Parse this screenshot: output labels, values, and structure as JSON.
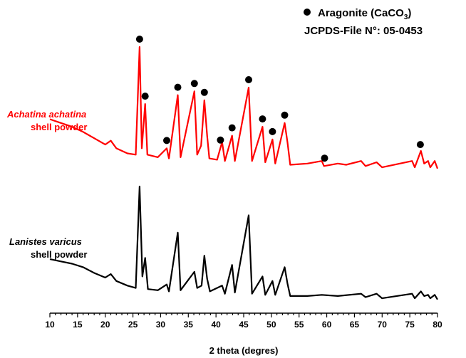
{
  "chart_data": {
    "type": "line",
    "xlabel": "2 theta (degres)",
    "ylabel": "",
    "xlim": [
      10,
      80
    ],
    "x_ticks": [
      10,
      15,
      20,
      25,
      30,
      35,
      40,
      45,
      50,
      55,
      60,
      65,
      70,
      75,
      80
    ],
    "y_axis_shown": false,
    "grid": false,
    "legend": {
      "position": "top-right",
      "marker": "filled-circle",
      "name_prefix": "Aragonite (CaCO",
      "name_subscript": "3",
      "name_suffix": ")",
      "file_line": "JCPDS-File N°:  05-0453"
    },
    "series": [
      {
        "name_italic": "Achatina achatina",
        "name_sub": "shell powder",
        "color": "#ff0000",
        "points": [
          [
            10,
            0.43
          ],
          [
            12,
            0.4
          ],
          [
            14,
            0.37
          ],
          [
            16,
            0.33
          ],
          [
            18,
            0.28
          ],
          [
            20,
            0.23
          ],
          [
            21,
            0.26
          ],
          [
            22,
            0.2
          ],
          [
            24,
            0.16
          ],
          [
            25.5,
            0.15
          ],
          [
            26.2,
            1.0
          ],
          [
            26.6,
            0.2
          ],
          [
            27.2,
            0.55
          ],
          [
            27.6,
            0.15
          ],
          [
            29.5,
            0.13
          ],
          [
            31.1,
            0.2
          ],
          [
            31.5,
            0.12
          ],
          [
            33.1,
            0.62
          ],
          [
            33.6,
            0.13
          ],
          [
            36.1,
            0.65
          ],
          [
            36.6,
            0.15
          ],
          [
            37.3,
            0.22
          ],
          [
            37.9,
            0.58
          ],
          [
            38.4,
            0.3
          ],
          [
            38.8,
            0.12
          ],
          [
            40.2,
            0.11
          ],
          [
            41.1,
            0.25
          ],
          [
            41.6,
            0.1
          ],
          [
            42.9,
            0.3
          ],
          [
            43.4,
            0.1
          ],
          [
            45.9,
            0.68
          ],
          [
            46.5,
            0.1
          ],
          [
            48.4,
            0.37
          ],
          [
            48.9,
            0.09
          ],
          [
            50.2,
            0.27
          ],
          [
            50.7,
            0.08
          ],
          [
            52.4,
            0.4
          ],
          [
            52.9,
            0.25
          ],
          [
            53.4,
            0.07
          ],
          [
            56.5,
            0.08
          ],
          [
            59.1,
            0.1
          ],
          [
            59.5,
            0.06
          ],
          [
            62,
            0.08
          ],
          [
            63.5,
            0.07
          ],
          [
            66.2,
            0.1
          ],
          [
            67,
            0.06
          ],
          [
            69,
            0.09
          ],
          [
            70,
            0.05
          ],
          [
            75.4,
            0.1
          ],
          [
            75.9,
            0.05
          ],
          [
            77,
            0.18
          ],
          [
            77.6,
            0.08
          ],
          [
            78.3,
            0.1
          ],
          [
            78.7,
            0.05
          ],
          [
            79.5,
            0.1
          ],
          [
            80,
            0.04
          ]
        ]
      },
      {
        "name_italic": "Lanistes varicus",
        "name_sub": "shell powder",
        "color": "#000000",
        "points": [
          [
            10,
            0.37
          ],
          [
            12,
            0.35
          ],
          [
            14,
            0.33
          ],
          [
            16,
            0.3
          ],
          [
            18,
            0.25
          ],
          [
            20,
            0.21
          ],
          [
            21,
            0.24
          ],
          [
            22,
            0.18
          ],
          [
            24,
            0.14
          ],
          [
            25.5,
            0.12
          ],
          [
            26.2,
            1.0
          ],
          [
            26.7,
            0.22
          ],
          [
            27.2,
            0.38
          ],
          [
            27.7,
            0.11
          ],
          [
            29.5,
            0.1
          ],
          [
            31.1,
            0.15
          ],
          [
            31.5,
            0.09
          ],
          [
            33.1,
            0.6
          ],
          [
            33.6,
            0.1
          ],
          [
            36.1,
            0.26
          ],
          [
            36.6,
            0.12
          ],
          [
            37.4,
            0.14
          ],
          [
            37.9,
            0.4
          ],
          [
            38.4,
            0.2
          ],
          [
            38.9,
            0.09
          ],
          [
            41.1,
            0.14
          ],
          [
            41.6,
            0.07
          ],
          [
            42.9,
            0.32
          ],
          [
            43.4,
            0.08
          ],
          [
            45.9,
            0.75
          ],
          [
            46.5,
            0.07
          ],
          [
            48.4,
            0.22
          ],
          [
            48.9,
            0.06
          ],
          [
            50.2,
            0.18
          ],
          [
            50.7,
            0.06
          ],
          [
            52.4,
            0.3
          ],
          [
            52.9,
            0.16
          ],
          [
            53.4,
            0.05
          ],
          [
            56.5,
            0.05
          ],
          [
            59.1,
            0.06
          ],
          [
            62,
            0.05
          ],
          [
            66.2,
            0.07
          ],
          [
            67,
            0.04
          ],
          [
            69,
            0.07
          ],
          [
            70,
            0.03
          ],
          [
            75.4,
            0.07
          ],
          [
            75.9,
            0.03
          ],
          [
            77,
            0.09
          ],
          [
            77.6,
            0.05
          ],
          [
            78.3,
            0.06
          ],
          [
            78.7,
            0.03
          ],
          [
            79.5,
            0.06
          ],
          [
            80,
            0.02
          ]
        ]
      }
    ],
    "marker_peaks_x": [
      26.2,
      27.2,
      31.1,
      33.1,
      36.1,
      37.9,
      40.8,
      42.9,
      45.9,
      48.4,
      50.2,
      52.4,
      59.6,
      76.9
    ]
  }
}
